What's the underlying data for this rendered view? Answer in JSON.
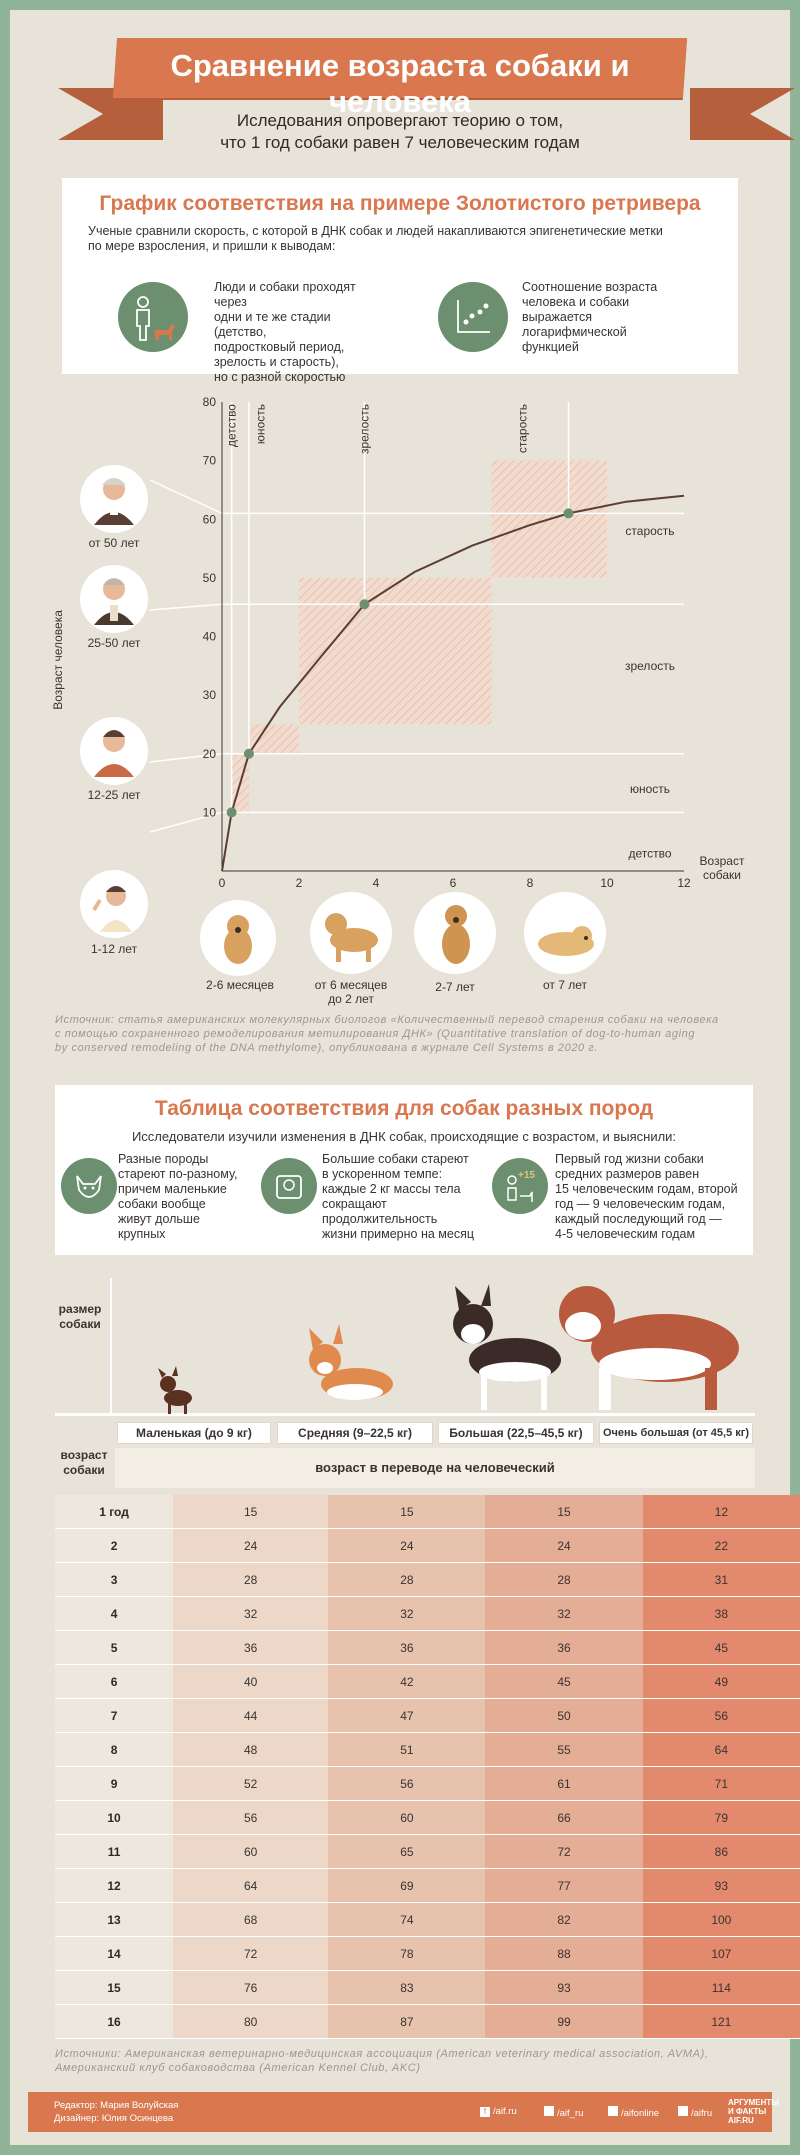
{
  "header": {
    "title": "Сравнение возраста собаки и человека",
    "subtitle_line1": "Иследования опровергают теорию о том,",
    "subtitle_line2": "что 1 год собаки равен 7 человеческим годам"
  },
  "section1": {
    "heading": "График соответствия на примере Золотистого ретривера",
    "intro_line1": "Ученые сравнили скорость, с которой в ДНК собак и людей накапливаются эпигенетические метки",
    "intro_line2": "по мере взросления, и пришли к выводам:",
    "fact1_lines": [
      "Люди и собаки проходят через",
      "одни и те же стадии (детство,",
      "подростковый период,",
      "зрелость и старость),",
      "но с разной скоростью"
    ],
    "fact2_lines": [
      "Соотношение возраста",
      "человека и собаки",
      "выражается",
      "логарифмической",
      "функцией"
    ],
    "icon1": "person-and-dog-icon",
    "icon2": "scatter-plot-icon"
  },
  "chart_data": {
    "type": "line",
    "xlabel_lines": [
      "Возраст",
      "собаки"
    ],
    "ylabel": "Возраст человека",
    "xlim": [
      0,
      12
    ],
    "ylim": [
      0,
      80
    ],
    "xticks": [
      "0",
      "2",
      "4",
      "6",
      "8",
      "10",
      "12"
    ],
    "yticks": [
      "10",
      "20",
      "30",
      "40",
      "50",
      "60",
      "70",
      "80"
    ],
    "points": [
      {
        "x": 0.25,
        "y": 10
      },
      {
        "x": 0.7,
        "y": 20
      },
      {
        "x": 3.7,
        "y": 45.5
      },
      {
        "x": 9,
        "y": 61
      }
    ],
    "curve": [
      [
        0,
        0
      ],
      [
        0.25,
        10
      ],
      [
        0.7,
        20
      ],
      [
        1.5,
        28
      ],
      [
        2.5,
        36
      ],
      [
        3.7,
        45.5
      ],
      [
        5,
        51
      ],
      [
        6.5,
        55.5
      ],
      [
        8,
        59
      ],
      [
        9,
        61
      ],
      [
        10.5,
        63
      ],
      [
        12,
        64
      ]
    ],
    "dog_stages": [
      "детство",
      "юность",
      "зрелость",
      "старость"
    ],
    "human_stages": [
      "старость",
      "зрелость",
      "юность",
      "детство"
    ],
    "human_age_labels": [
      "от 50 лет",
      "25-50 лет",
      "12-25 лет",
      "1-12 лет"
    ],
    "dog_age_labels": [
      "2-6 месяцев",
      "от 6 месяцев до 2 лет",
      "2-7 лет",
      "от 7 лет"
    ],
    "accent": "#d9784f",
    "point_color": "#6b8f6f",
    "line_color": "#5a3e33"
  },
  "chart_labels": {
    "dog_age_2_line1": "от 6 месяцев",
    "dog_age_2_line2": "до 2 лет"
  },
  "source1_lines": [
    "Источник: статья американских молекулярных биологов «Количественный перевод старения собаки на человека",
    "с помощью сохраненного ремоделирования метилирования ДНК» (Quantitative translation of dog-to-human aging",
    "by conserved remodeling of the DNA methylome), опубликована в журнале Cell Systems в 2020 г."
  ],
  "section2": {
    "heading": "Таблица соответствия для собак разных пород",
    "intro": "Исследователи изучили изменения в ДНК собак, происходящие с возрастом, и выяснили:",
    "fact1_lines": [
      "Разные породы",
      "стареют по-разному,",
      "причем маленькие",
      "собаки вообще",
      "живут дольше",
      "крупных"
    ],
    "fact2_lines": [
      "Большие собаки стареют",
      "в ускоренном темпе:",
      "каждые 2 кг массы тела",
      "сокращают",
      "продолжительность",
      "жизни примерно на месяц"
    ],
    "fact3_lines": [
      "Первый год жизни собаки",
      "средних размеров равен",
      "15 человеческим годам, второй",
      "год — 9 человеческим годам,",
      "каждый последующий год —",
      "4-5  человеческим годам"
    ],
    "icon1": "chihuahua-icon",
    "icon2": "weight-scale-icon",
    "icon3": "dog-plus-years-icon",
    "icon3_badge": "+15"
  },
  "table": {
    "size_label_lines": [
      "размер",
      "собаки"
    ],
    "age_label_lines": [
      "возраст",
      "собаки"
    ],
    "subheader": "возраст в переводе на человеческий",
    "columns": [
      "Маленькая (до 9 кг)",
      "Средняя (9–22,5 кг)",
      "Большая (22,5–45,5 кг)",
      "Очень большая (от 45,5 кг)"
    ],
    "rows": [
      [
        "1 год",
        "15",
        "15",
        "15",
        "12"
      ],
      [
        "2",
        "24",
        "24",
        "24",
        "22"
      ],
      [
        "3",
        "28",
        "28",
        "28",
        "31"
      ],
      [
        "4",
        "32",
        "32",
        "32",
        "38"
      ],
      [
        "5",
        "36",
        "36",
        "36",
        "45"
      ],
      [
        "6",
        "40",
        "42",
        "45",
        "49"
      ],
      [
        "7",
        "44",
        "47",
        "50",
        "56"
      ],
      [
        "8",
        "48",
        "51",
        "55",
        "64"
      ],
      [
        "9",
        "52",
        "56",
        "61",
        "71"
      ],
      [
        "10",
        "56",
        "60",
        "66",
        "79"
      ],
      [
        "11",
        "60",
        "65",
        "72",
        "86"
      ],
      [
        "12",
        "64",
        "69",
        "77",
        "93"
      ],
      [
        "13",
        "68",
        "74",
        "82",
        "100"
      ],
      [
        "14",
        "72",
        "78",
        "88",
        "107"
      ],
      [
        "15",
        "76",
        "83",
        "93",
        "114"
      ],
      [
        "16",
        "80",
        "87",
        "99",
        "121"
      ]
    ]
  },
  "source2_lines": [
    "Источники:  Американская ветеринарно-медицинская ассоциация (American veterinary medical association, AVMA),",
    "Американский клуб собаководства (American Kennel Club, AKC)"
  ],
  "footer": {
    "editor": "Редактор: Мария Волуйская",
    "designer": "Дизайнер: Юлия Осинцева",
    "links": [
      "/aif.ru",
      "/aif_ru",
      "/aifonline",
      "/aifru"
    ],
    "logo_line1": "АРГУМЕНТЫ",
    "logo_line2": "И ФАКТЫ",
    "logo_line3": "AIF.RU"
  }
}
